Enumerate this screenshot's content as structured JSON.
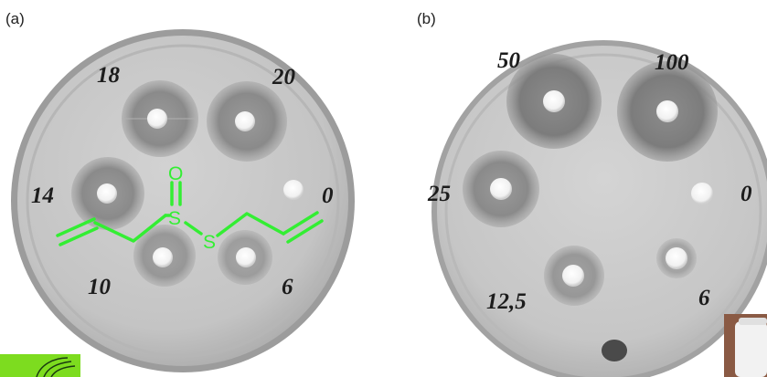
{
  "panels": [
    {
      "label": "(a)",
      "concentrations": [
        "18",
        "20",
        "14",
        "0",
        "10",
        "6"
      ]
    },
    {
      "label": "(b)",
      "concentrations": [
        "50",
        "100",
        "25",
        "0",
        "12,5",
        "6"
      ]
    }
  ],
  "molecule": {
    "atoms": [
      "O",
      "S",
      "S"
    ],
    "color": "#33ee33"
  },
  "colors": {
    "agar": "#c8c8c8",
    "plate_rim": "#9a9a9a",
    "inhibition_zone": "#8e8e8e",
    "disc": "#f8f8f8",
    "molecule": "#33ee33"
  }
}
